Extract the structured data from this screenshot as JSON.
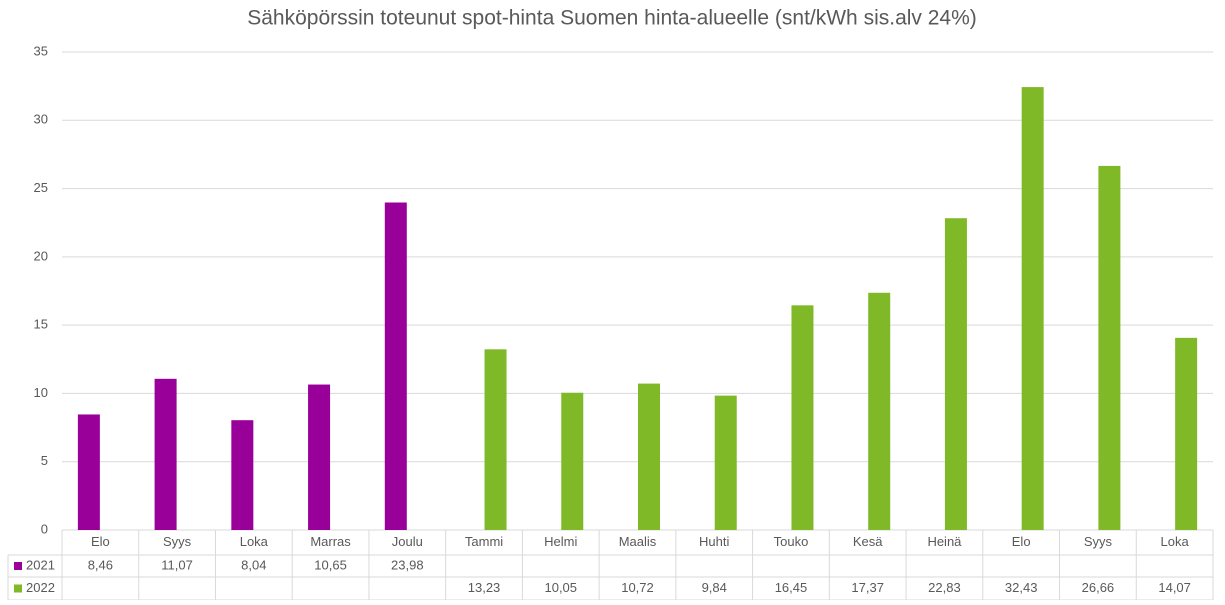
{
  "chart_data": {
    "type": "bar",
    "title": "Sähköpörssin toteunut spot-hinta Suomen hinta-alueelle (snt/kWh sis.alv 24%)",
    "categories": [
      "Elo",
      "Syys",
      "Loka",
      "Marras",
      "Joulu",
      "Tammi",
      "Helmi",
      "Maalis",
      "Huhti",
      "Touko",
      "Kesä",
      "Heinä",
      "Elo",
      "Syys",
      "Loka"
    ],
    "series": [
      {
        "name": "2021",
        "color": "#990099",
        "values": [
          8.46,
          11.07,
          8.04,
          10.65,
          23.98,
          null,
          null,
          null,
          null,
          null,
          null,
          null,
          null,
          null,
          null
        ],
        "value_labels": [
          "8,46",
          "11,07",
          "8,04",
          "10,65",
          "23,98",
          null,
          null,
          null,
          null,
          null,
          null,
          null,
          null,
          null,
          null
        ]
      },
      {
        "name": "2022",
        "color": "#7fb927",
        "values": [
          null,
          null,
          null,
          null,
          null,
          13.23,
          10.05,
          10.72,
          9.84,
          16.45,
          17.37,
          22.83,
          32.43,
          26.66,
          14.07
        ],
        "value_labels": [
          null,
          null,
          null,
          null,
          null,
          "13,23",
          "10,05",
          "10,72",
          "9,84",
          "16,45",
          "17,37",
          "22,83",
          "32,43",
          "26,66",
          "14,07"
        ]
      }
    ],
    "ylim": [
      0,
      35
    ],
    "yticks": [
      0,
      5,
      10,
      15,
      20,
      25,
      30,
      35
    ],
    "grid": true,
    "data_table": true
  }
}
